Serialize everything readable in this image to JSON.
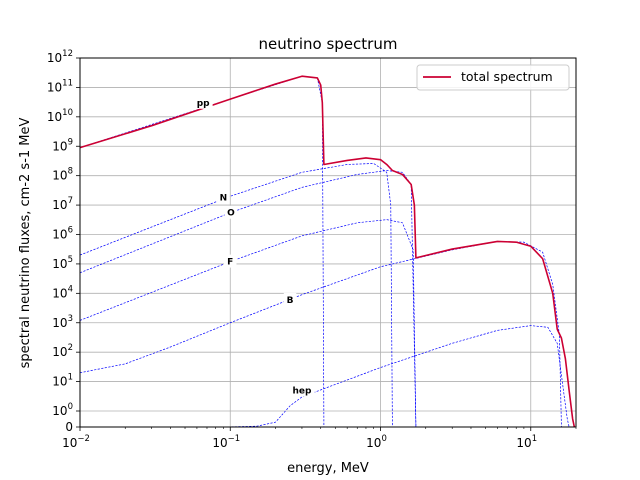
{
  "chart_data": {
    "type": "line",
    "title": "neutrino spectrum",
    "xlabel": "energy, MeV",
    "ylabel": "spectral neutrino fluxes, cm-2 s-1 MeV",
    "x_scale": "log",
    "y_scale": "symlog",
    "xlim": [
      0.01,
      20
    ],
    "ylim": [
      0,
      1000000000000.0
    ],
    "grid": true,
    "legend": {
      "location": "top-right",
      "entries": [
        "total spectrum"
      ]
    },
    "x_ticks": [
      {
        "value": 0.01,
        "base": "10",
        "exp": "−2"
      },
      {
        "value": 0.1,
        "base": "10",
        "exp": "−1"
      },
      {
        "value": 1,
        "base": "10",
        "exp": "0"
      },
      {
        "value": 10,
        "base": "10",
        "exp": "1"
      }
    ],
    "y_ticks": [
      {
        "value": 0,
        "base": "0",
        "exp": ""
      },
      {
        "value": 1,
        "base": "10",
        "exp": "0"
      },
      {
        "value": 10,
        "base": "10",
        "exp": "1"
      },
      {
        "value": 100,
        "base": "10",
        "exp": "2"
      },
      {
        "value": 1000,
        "base": "10",
        "exp": "3"
      },
      {
        "value": 10000,
        "base": "10",
        "exp": "4"
      },
      {
        "value": 100000,
        "base": "10",
        "exp": "5"
      },
      {
        "value": 1000000,
        "base": "10",
        "exp": "6"
      },
      {
        "value": 10000000,
        "base": "10",
        "exp": "7"
      },
      {
        "value": 100000000,
        "base": "10",
        "exp": "8"
      },
      {
        "value": 1000000000,
        "base": "10",
        "exp": "9"
      },
      {
        "value": 10000000000,
        "base": "10",
        "exp": "10"
      },
      {
        "value": 100000000000,
        "base": "10",
        "exp": "11"
      },
      {
        "value": 1000000000000,
        "base": "10",
        "exp": "12"
      }
    ],
    "series": [
      {
        "name": "total spectrum",
        "style": "solid",
        "color": "#cc0033",
        "points": [
          [
            0.01,
            900000000.0
          ],
          [
            0.03,
            5000000000.0
          ],
          [
            0.1,
            40000000000.0
          ],
          [
            0.2,
            130000000000.0
          ],
          [
            0.3,
            240000000000.0
          ],
          [
            0.38,
            210000000000.0
          ],
          [
            0.4,
            120000000000.0
          ],
          [
            0.41,
            30000000000.0
          ],
          [
            0.42,
            240000000.0
          ],
          [
            0.6,
            330000000.0
          ],
          [
            0.8,
            400000000.0
          ],
          [
            1.0,
            350000000.0
          ],
          [
            1.1,
            240000000.0
          ],
          [
            1.2,
            150000000.0
          ],
          [
            1.4,
            110000000.0
          ],
          [
            1.6,
            50000000.0
          ],
          [
            1.68,
            10000000.0
          ],
          [
            1.72,
            160000.0
          ],
          [
            3,
            320000.0
          ],
          [
            6,
            580000.0
          ],
          [
            8,
            550000.0
          ],
          [
            10,
            400000.0
          ],
          [
            12,
            150000.0
          ],
          [
            14,
            10000.0
          ],
          [
            15,
            600
          ],
          [
            16,
            300
          ],
          [
            17,
            60
          ],
          [
            18,
            5
          ],
          [
            19,
            0.5
          ],
          [
            19.5,
            0
          ]
        ]
      },
      {
        "name": "pp",
        "label": "pp",
        "style": "dashed",
        "color": "#0000ff",
        "points": [
          [
            0.01,
            900000000.0
          ],
          [
            0.1,
            40000000000.0
          ],
          [
            0.3,
            240000000000.0
          ],
          [
            0.38,
            210000000000.0
          ],
          [
            0.41,
            30000000000.0
          ],
          [
            0.42,
            0
          ]
        ]
      },
      {
        "name": "N",
        "label": "N",
        "style": "dashed",
        "color": "#0000ff",
        "points": [
          [
            0.01,
            200000.0
          ],
          [
            0.1,
            20000000.0
          ],
          [
            0.3,
            130000000.0
          ],
          [
            0.6,
            240000000.0
          ],
          [
            0.9,
            260000000.0
          ],
          [
            1.1,
            130000000.0
          ],
          [
            1.17,
            10000000.0
          ],
          [
            1.2,
            0
          ]
        ]
      },
      {
        "name": "O",
        "label": "O",
        "style": "dashed",
        "color": "#0000ff",
        "points": [
          [
            0.01,
            50000.0
          ],
          [
            0.1,
            5500000.0
          ],
          [
            0.3,
            40000000.0
          ],
          [
            0.7,
            110000000.0
          ],
          [
            1.1,
            150000000.0
          ],
          [
            1.4,
            130000000.0
          ],
          [
            1.6,
            50000000.0
          ],
          [
            1.72,
            0
          ]
        ]
      },
      {
        "name": "F",
        "label": "F",
        "style": "dashed",
        "color": "#0000ff",
        "points": [
          [
            0.01,
            1200.0
          ],
          [
            0.1,
            120000.0
          ],
          [
            0.3,
            900000.0
          ],
          [
            0.7,
            2500000.0
          ],
          [
            1.1,
            3200000.0
          ],
          [
            1.4,
            2500000.0
          ],
          [
            1.65,
            300000.0
          ],
          [
            1.72,
            0
          ]
        ]
      },
      {
        "name": "B",
        "label": "B",
        "style": "dashed",
        "color": "#0000ff",
        "points": [
          [
            0.01,
            20
          ],
          [
            0.02,
            40
          ],
          [
            0.04,
            150
          ],
          [
            0.1,
            1000.0
          ],
          [
            0.3,
            9000.0
          ],
          [
            1,
            80000.0
          ],
          [
            3,
            300000.0
          ],
          [
            6,
            580000.0
          ],
          [
            9,
            550000.0
          ],
          [
            12,
            250000.0
          ],
          [
            14,
            20000.0
          ],
          [
            15.5,
            400
          ],
          [
            16,
            0
          ]
        ]
      },
      {
        "name": "hep",
        "label": "hep",
        "style": "dashed",
        "color": "#0000ff",
        "points": [
          [
            0.01,
            0.002
          ],
          [
            0.05,
            0.003
          ],
          [
            0.1,
            0.01
          ],
          [
            0.15,
            0.05
          ],
          [
            0.2,
            0.3
          ],
          [
            0.25,
            1.5
          ],
          [
            0.3,
            3
          ],
          [
            0.5,
            8
          ],
          [
            1,
            30
          ],
          [
            3,
            200
          ],
          [
            6,
            550
          ],
          [
            10,
            800
          ],
          [
            13,
            700
          ],
          [
            15,
            200
          ],
          [
            16.5,
            5
          ],
          [
            17.5,
            0.5
          ],
          [
            18,
            0
          ]
        ]
      }
    ],
    "curve_labels": [
      {
        "text": "pp",
        "x": 0.066,
        "y": 30000000000.0
      },
      {
        "text": "N",
        "x": 0.09,
        "y": 18000000.0
      },
      {
        "text": "O",
        "x": 0.101,
        "y": 5500000.0
      },
      {
        "text": "F",
        "x": 0.1,
        "y": 120000.0
      },
      {
        "text": "B",
        "x": 0.25,
        "y": 6000.0
      },
      {
        "text": "hep",
        "x": 0.3,
        "y": 5
      }
    ]
  }
}
